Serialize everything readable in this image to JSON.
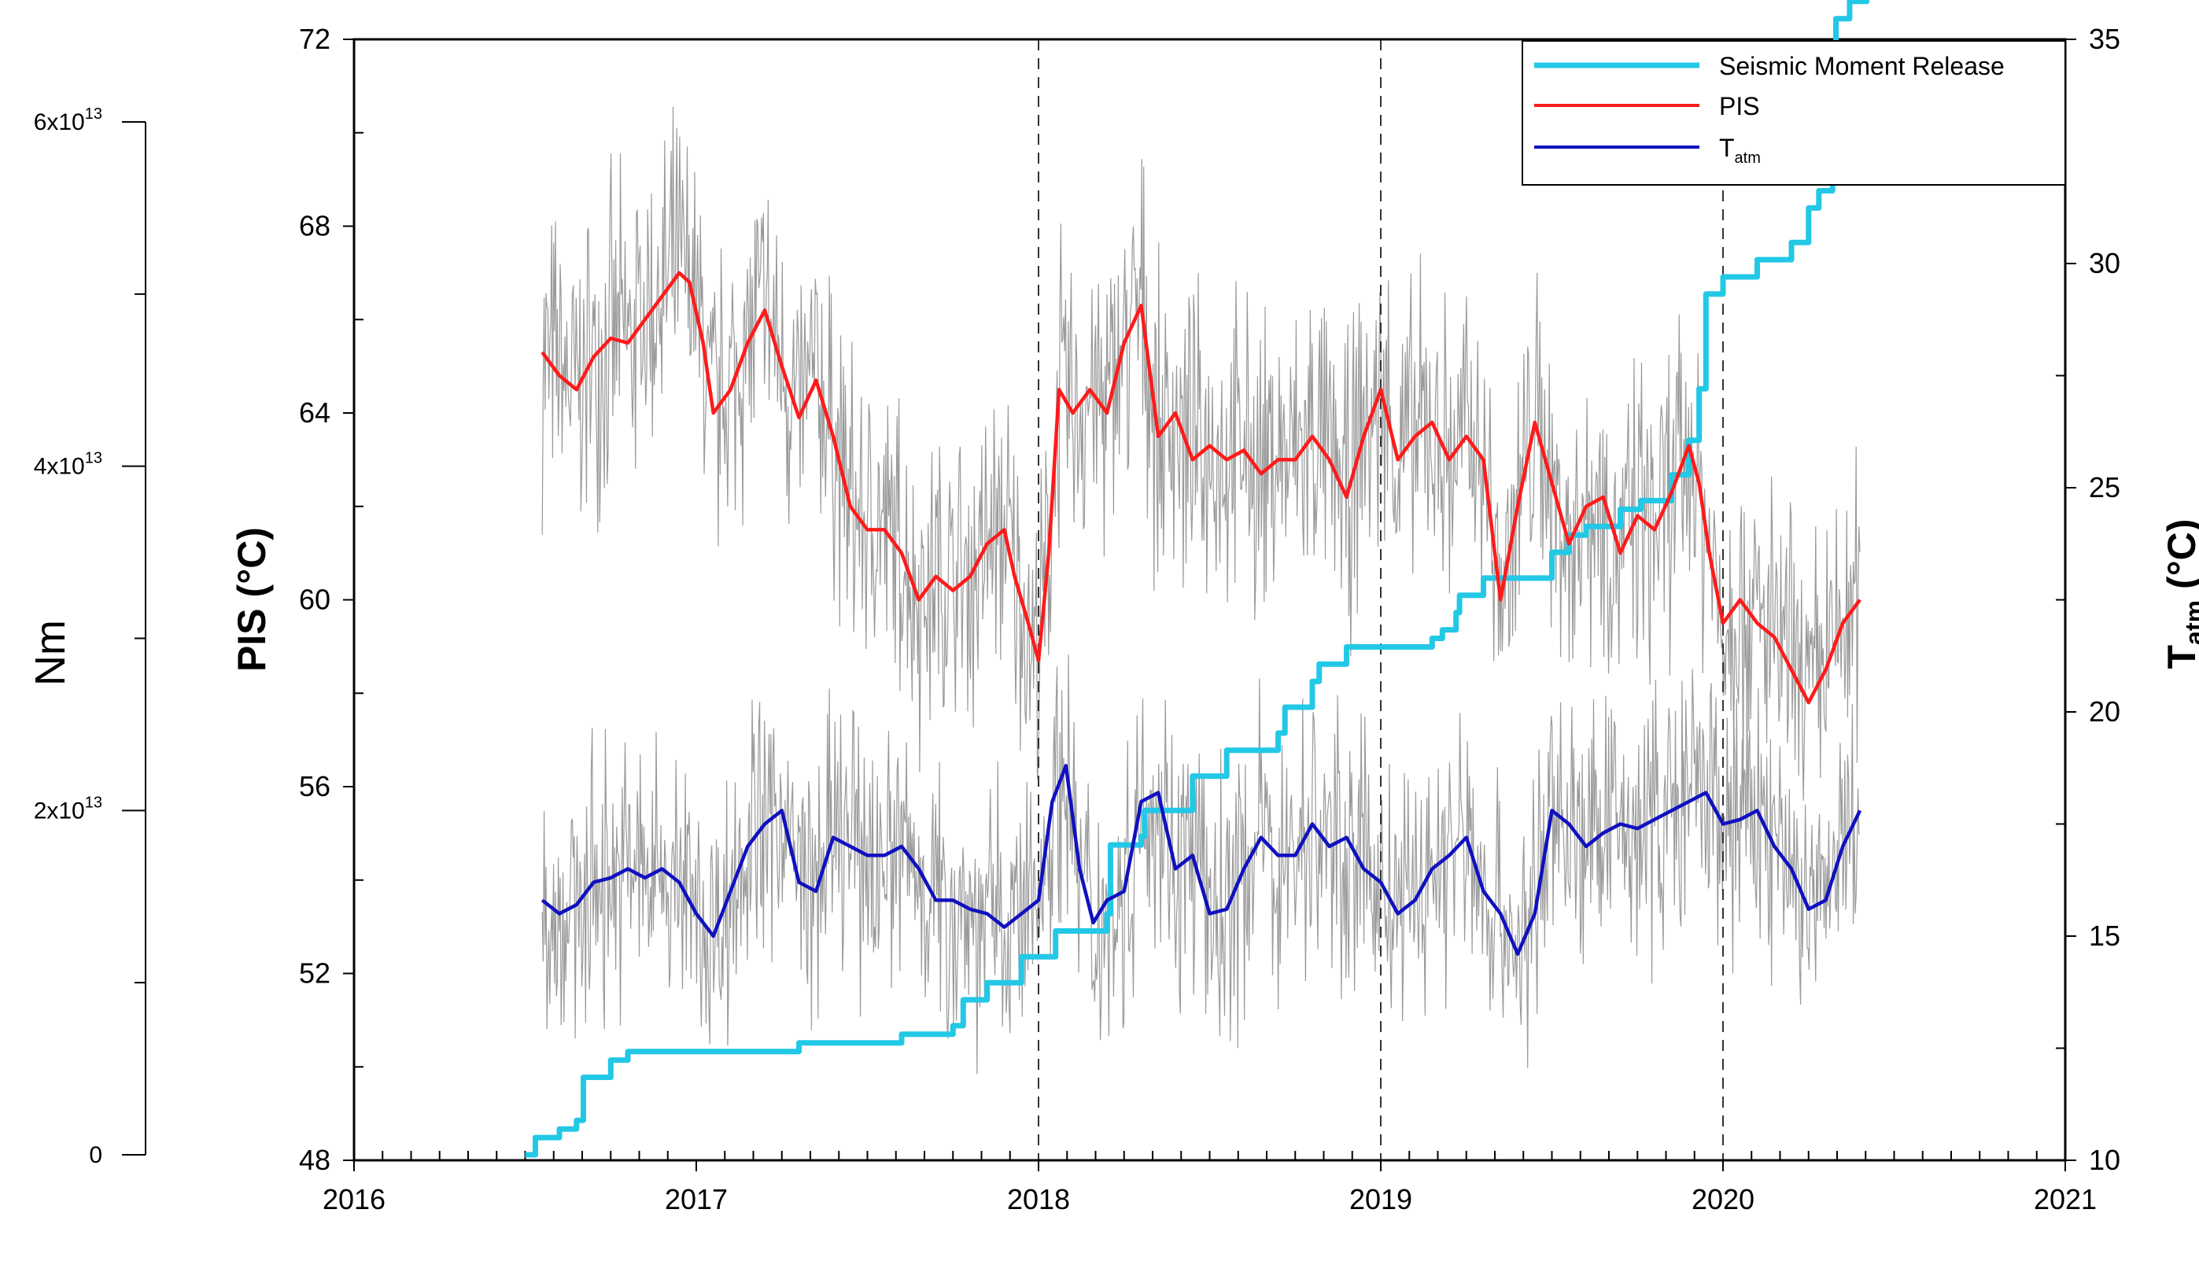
{
  "chart_data": {
    "type": "line",
    "x_axis": {
      "range": [
        2016,
        2021
      ],
      "major_ticks": [
        2016,
        2017,
        2018,
        2019,
        2020,
        2021
      ],
      "tick_labels": [
        "2016",
        "2017",
        "2018",
        "2019",
        "2020",
        "2021"
      ],
      "minor_ticks_per_year": 12,
      "vertical_dashed_lines_at": [
        2018,
        2019,
        2020
      ]
    },
    "left_axis": {
      "label": "PIS (°C)",
      "range": [
        48,
        72
      ],
      "ticks": [
        48,
        52,
        56,
        60,
        64,
        68,
        72
      ],
      "tick_labels": [
        "48",
        "52",
        "56",
        "60",
        "64",
        "68",
        "72"
      ]
    },
    "right_axis": {
      "label_main": "T",
      "label_sub": "atm",
      "label_tail": " (°C)",
      "range": [
        10,
        35
      ],
      "ticks": [
        10,
        15,
        20,
        25,
        30,
        35
      ],
      "tick_labels": [
        "10",
        "15",
        "20",
        "25",
        "30",
        "35"
      ]
    },
    "far_left_axis": {
      "label": "Nm",
      "range": [
        0,
        60000000000000.0
      ],
      "ticks": [
        0,
        20000000000000.0,
        40000000000000.0,
        60000000000000.0
      ],
      "tick_labels": [
        {
          "base": "0",
          "exp": ""
        },
        {
          "base": "2x10",
          "exp": "13"
        },
        {
          "base": "4x10",
          "exp": "13"
        },
        {
          "base": "6x10",
          "exp": "13"
        }
      ]
    },
    "legend": {
      "placement": "top-right",
      "entries": [
        {
          "label": "Seismic Moment Release",
          "sub": "",
          "color": "#22c8e6"
        },
        {
          "label": "PIS",
          "sub": "",
          "color": "#ff1a1a"
        },
        {
          "label": "T",
          "sub": "atm",
          "color": "#1010c0"
        }
      ]
    },
    "series": [
      {
        "name": "Seismic Moment Release",
        "axis": "far_left",
        "color": "#22c8e6",
        "step": true,
        "x": [
          2016.5,
          2016.53,
          2016.6,
          2016.65,
          2016.67,
          2016.75,
          2016.8,
          2017.0,
          2017.3,
          2017.6,
          2017.75,
          2017.78,
          2017.85,
          2017.95,
          2018.05,
          2018.2,
          2018.21,
          2018.3,
          2018.31,
          2018.45,
          2018.55,
          2018.7,
          2018.72,
          2018.8,
          2018.82,
          2018.9,
          2019.15,
          2019.18,
          2019.22,
          2019.23,
          2019.3,
          2019.5,
          2019.55,
          2019.6,
          2019.7,
          2019.76,
          2019.85,
          2019.9,
          2019.93,
          2019.95,
          2020.0,
          2020.1,
          2020.2,
          2020.25,
          2020.28,
          2020.32,
          2020.33,
          2020.37,
          2020.42
        ],
        "y": [
          0.0,
          1000000000000.0,
          1500000000000.0,
          2000000000000.0,
          4500000000000.0,
          5500000000000.0,
          6000000000000.0,
          6000000000000.0,
          6500000000000.0,
          7000000000000.0,
          7500000000000.0,
          9000000000000.0,
          10000000000000.0,
          11500000000000.0,
          13000000000000.0,
          14000000000000.0,
          18000000000000.0,
          18500000000000.0,
          20000000000000.0,
          22000000000000.0,
          23500000000000.0,
          24500000000000.0,
          26000000000000.0,
          27500000000000.0,
          28500000000000.0,
          29500000000000.0,
          30000000000000.0,
          30500000000000.0,
          31500000000000.0,
          32500000000000.0,
          33500000000000.0,
          35000000000000.0,
          36000000000000.0,
          36500000000000.0,
          37500000000000.0,
          38000000000000.0,
          39500000000000.0,
          41500000000000.0,
          44500000000000.0,
          50000000000000.0,
          51000000000000.0,
          52000000000000.0,
          53000000000000.0,
          55000000000000.0,
          56000000000000.0,
          57000000000000.0,
          66000000000000.0,
          67000000000000.0,
          67500000000000.0
        ]
      },
      {
        "name": "PIS",
        "axis": "left",
        "color": "#ff1a1a",
        "x": [
          2016.55,
          2016.6,
          2016.65,
          2016.7,
          2016.75,
          2016.8,
          2016.85,
          2016.9,
          2016.95,
          2016.98,
          2017.02,
          2017.05,
          2017.1,
          2017.15,
          2017.2,
          2017.25,
          2017.3,
          2017.35,
          2017.4,
          2017.45,
          2017.5,
          2017.55,
          2017.6,
          2017.65,
          2017.7,
          2017.75,
          2017.8,
          2017.85,
          2017.9,
          2017.93,
          2017.97,
          2018.0,
          2018.03,
          2018.06,
          2018.1,
          2018.15,
          2018.2,
          2018.25,
          2018.3,
          2018.35,
          2018.4,
          2018.45,
          2018.5,
          2018.55,
          2018.6,
          2018.65,
          2018.7,
          2018.75,
          2018.8,
          2018.85,
          2018.9,
          2018.95,
          2019.0,
          2019.05,
          2019.1,
          2019.15,
          2019.2,
          2019.25,
          2019.3,
          2019.35,
          2019.4,
          2019.45,
          2019.5,
          2019.55,
          2019.6,
          2019.65,
          2019.7,
          2019.75,
          2019.8,
          2019.85,
          2019.9,
          2019.93,
          2019.96,
          2020.0,
          2020.05,
          2020.1,
          2020.15,
          2020.2,
          2020.25,
          2020.3,
          2020.35,
          2020.4
        ],
        "y": [
          65.3,
          64.8,
          64.5,
          65.2,
          65.6,
          65.5,
          66.0,
          66.5,
          67.0,
          66.8,
          65.5,
          64.0,
          64.5,
          65.5,
          66.2,
          65.0,
          63.9,
          64.7,
          63.5,
          62.0,
          61.5,
          61.5,
          61.0,
          60.0,
          60.5,
          60.2,
          60.5,
          61.2,
          61.5,
          60.5,
          59.5,
          58.7,
          61.0,
          64.5,
          64.0,
          64.5,
          64.0,
          65.5,
          66.3,
          63.5,
          64.0,
          63.0,
          63.3,
          63.0,
          63.2,
          62.7,
          63.0,
          63.0,
          63.5,
          63.0,
          62.2,
          63.5,
          64.5,
          63.0,
          63.5,
          63.8,
          63.0,
          63.5,
          63.0,
          60.0,
          62.0,
          63.8,
          62.5,
          61.2,
          62.0,
          62.2,
          61.0,
          61.8,
          61.5,
          62.3,
          63.3,
          62.5,
          61.0,
          59.5,
          60.0,
          59.5,
          59.2,
          58.5,
          57.8,
          58.5,
          59.5,
          60.0
        ]
      },
      {
        "name": "T_atm",
        "axis": "right",
        "color": "#1010c0",
        "x": [
          2016.55,
          2016.6,
          2016.65,
          2016.7,
          2016.75,
          2016.8,
          2016.85,
          2016.9,
          2016.95,
          2017.0,
          2017.05,
          2017.1,
          2017.15,
          2017.2,
          2017.25,
          2017.3,
          2017.35,
          2017.4,
          2017.45,
          2017.5,
          2017.55,
          2017.6,
          2017.65,
          2017.7,
          2017.75,
          2017.8,
          2017.85,
          2017.9,
          2017.95,
          2018.0,
          2018.04,
          2018.08,
          2018.12,
          2018.16,
          2018.2,
          2018.25,
          2018.3,
          2018.35,
          2018.4,
          2018.45,
          2018.5,
          2018.55,
          2018.6,
          2018.65,
          2018.7,
          2018.75,
          2018.8,
          2018.85,
          2018.9,
          2018.95,
          2019.0,
          2019.05,
          2019.1,
          2019.15,
          2019.2,
          2019.25,
          2019.3,
          2019.35,
          2019.4,
          2019.45,
          2019.5,
          2019.55,
          2019.6,
          2019.65,
          2019.7,
          2019.75,
          2019.8,
          2019.85,
          2019.9,
          2019.95,
          2020.0,
          2020.05,
          2020.1,
          2020.15,
          2020.2,
          2020.25,
          2020.3,
          2020.35,
          2020.4
        ],
        "y": [
          15.8,
          15.5,
          15.7,
          16.2,
          16.3,
          16.5,
          16.3,
          16.5,
          16.2,
          15.5,
          15.0,
          16.0,
          17.0,
          17.5,
          17.8,
          16.2,
          16.0,
          17.2,
          17.0,
          16.8,
          16.8,
          17.0,
          16.5,
          15.8,
          15.8,
          15.6,
          15.5,
          15.2,
          15.5,
          15.8,
          18.0,
          18.8,
          16.5,
          15.3,
          15.8,
          16.0,
          18.0,
          18.2,
          16.5,
          16.8,
          15.5,
          15.6,
          16.5,
          17.2,
          16.8,
          16.8,
          17.5,
          17.0,
          17.2,
          16.5,
          16.2,
          15.5,
          15.8,
          16.5,
          16.8,
          17.2,
          16.0,
          15.5,
          14.6,
          15.5,
          17.8,
          17.5,
          17.0,
          17.3,
          17.5,
          17.4,
          17.6,
          17.8,
          18.0,
          18.2,
          17.5,
          17.6,
          17.8,
          17.0,
          16.5,
          15.6,
          15.8,
          17.0,
          17.8
        ]
      }
    ]
  }
}
